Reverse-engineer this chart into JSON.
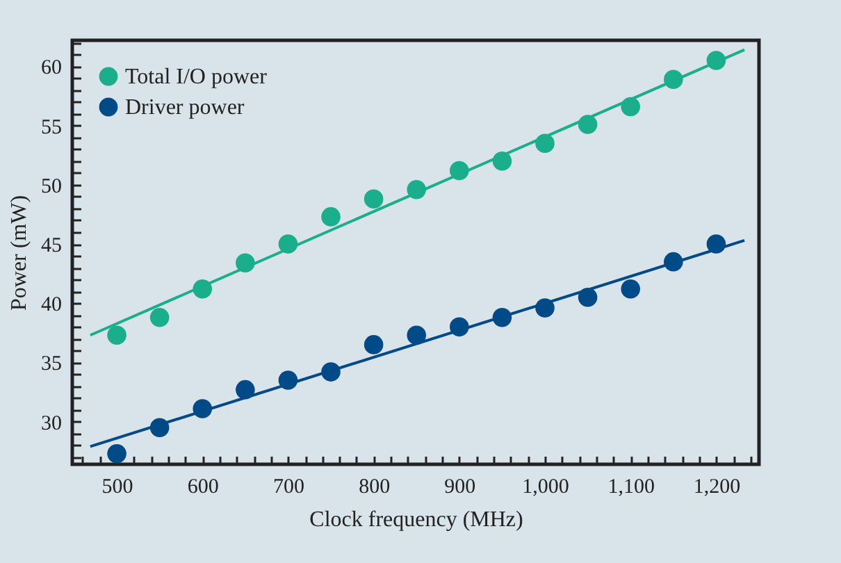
{
  "chart_data": {
    "type": "scatter",
    "xlabel": "Clock frequency  (MHz)",
    "ylabel": "Power  (mW)",
    "xlim": [
      448,
      1250
    ],
    "ylim": [
      26.4,
      62.2
    ],
    "xticks": [
      {
        "value": 460,
        "label": null
      },
      {
        "value": 480,
        "label": null
      },
      500,
      {
        "value": 520,
        "label": null
      },
      {
        "value": 540,
        "label": null
      },
      {
        "value": 560,
        "label": null
      },
      {
        "value": 580,
        "label": null
      },
      600,
      {
        "value": 620,
        "label": null
      },
      {
        "value": 640,
        "label": null
      },
      {
        "value": 660,
        "label": null
      },
      {
        "value": 680,
        "label": null
      },
      700,
      {
        "value": 720,
        "label": null
      },
      {
        "value": 740,
        "label": null
      },
      {
        "value": 760,
        "label": null
      },
      {
        "value": 780,
        "label": null
      },
      800,
      {
        "value": 820,
        "label": null
      },
      {
        "value": 840,
        "label": null
      },
      {
        "value": 860,
        "label": null
      },
      {
        "value": 880,
        "label": null
      },
      900,
      {
        "value": 920,
        "label": null
      },
      {
        "value": 940,
        "label": null
      },
      {
        "value": 960,
        "label": null
      },
      {
        "value": 980,
        "label": null
      },
      {
        "value": 1000,
        "label": "1,000"
      },
      {
        "value": 1020,
        "label": null
      },
      {
        "value": 1040,
        "label": null
      },
      {
        "value": 1060,
        "label": null
      },
      {
        "value": 1080,
        "label": null
      },
      {
        "value": 1100,
        "label": "1,100"
      },
      {
        "value": 1120,
        "label": null
      },
      {
        "value": 1140,
        "label": null
      },
      {
        "value": 1160,
        "label": null
      },
      {
        "value": 1180,
        "label": null
      },
      {
        "value": 1200,
        "label": "1,200"
      },
      {
        "value": 1220,
        "label": null
      },
      {
        "value": 1240,
        "label": null
      }
    ],
    "yticks": [
      {
        "value": 27,
        "label": null
      },
      {
        "value": 28,
        "label": null
      },
      {
        "value": 29,
        "label": null
      },
      30,
      {
        "value": 31,
        "label": null
      },
      {
        "value": 32,
        "label": null
      },
      {
        "value": 33,
        "label": null
      },
      {
        "value": 34,
        "label": null
      },
      35,
      {
        "value": 36,
        "label": null
      },
      {
        "value": 37,
        "label": null
      },
      {
        "value": 38,
        "label": null
      },
      {
        "value": 39,
        "label": null
      },
      40,
      {
        "value": 41,
        "label": null
      },
      {
        "value": 42,
        "label": null
      },
      {
        "value": 43,
        "label": null
      },
      {
        "value": 44,
        "label": null
      },
      45,
      {
        "value": 46,
        "label": null
      },
      {
        "value": 47,
        "label": null
      },
      {
        "value": 48,
        "label": null
      },
      {
        "value": 49,
        "label": null
      },
      50,
      {
        "value": 51,
        "label": null
      },
      {
        "value": 52,
        "label": null
      },
      {
        "value": 53,
        "label": null
      },
      {
        "value": 54,
        "label": null
      },
      55,
      {
        "value": 56,
        "label": null
      },
      {
        "value": 57,
        "label": null
      },
      {
        "value": 58,
        "label": null
      },
      {
        "value": 59,
        "label": null
      },
      60,
      {
        "value": 61,
        "label": null
      },
      {
        "value": 62,
        "label": null
      }
    ],
    "grid": false,
    "legend": "top left",
    "marker": "circle",
    "series": [
      {
        "name": "Total I/O power",
        "color": "#1aae8c",
        "x": [
          500,
          550,
          600,
          650,
          700,
          750,
          800,
          850,
          900,
          950,
          1000,
          1050,
          1100,
          1150,
          1200
        ],
        "values": [
          37.3,
          38.8,
          41.2,
          43.4,
          45.0,
          47.3,
          48.8,
          49.6,
          51.2,
          52.0,
          53.5,
          55.1,
          56.6,
          58.9,
          60.5
        ]
      },
      {
        "name": "Driver power",
        "color": "#004a87",
        "x": [
          500,
          550,
          600,
          650,
          700,
          750,
          800,
          850,
          900,
          950,
          1000,
          1050,
          1100,
          1150,
          1200
        ],
        "values": [
          27.3,
          29.5,
          31.1,
          32.7,
          33.5,
          34.2,
          36.5,
          37.3,
          38.0,
          38.8,
          39.6,
          40.5,
          41.2,
          43.5,
          45.0
        ]
      },
      {
        "type": "line",
        "marker": "none",
        "color": "#1aae8c",
        "x": [
          469,
          1233
        ],
        "values": [
          37.3,
          61.4
        ]
      },
      {
        "type": "line",
        "marker": "none",
        "color": "#004a87",
        "x": [
          469,
          1233
        ],
        "values": [
          27.9,
          45.3
        ]
      }
    ]
  }
}
